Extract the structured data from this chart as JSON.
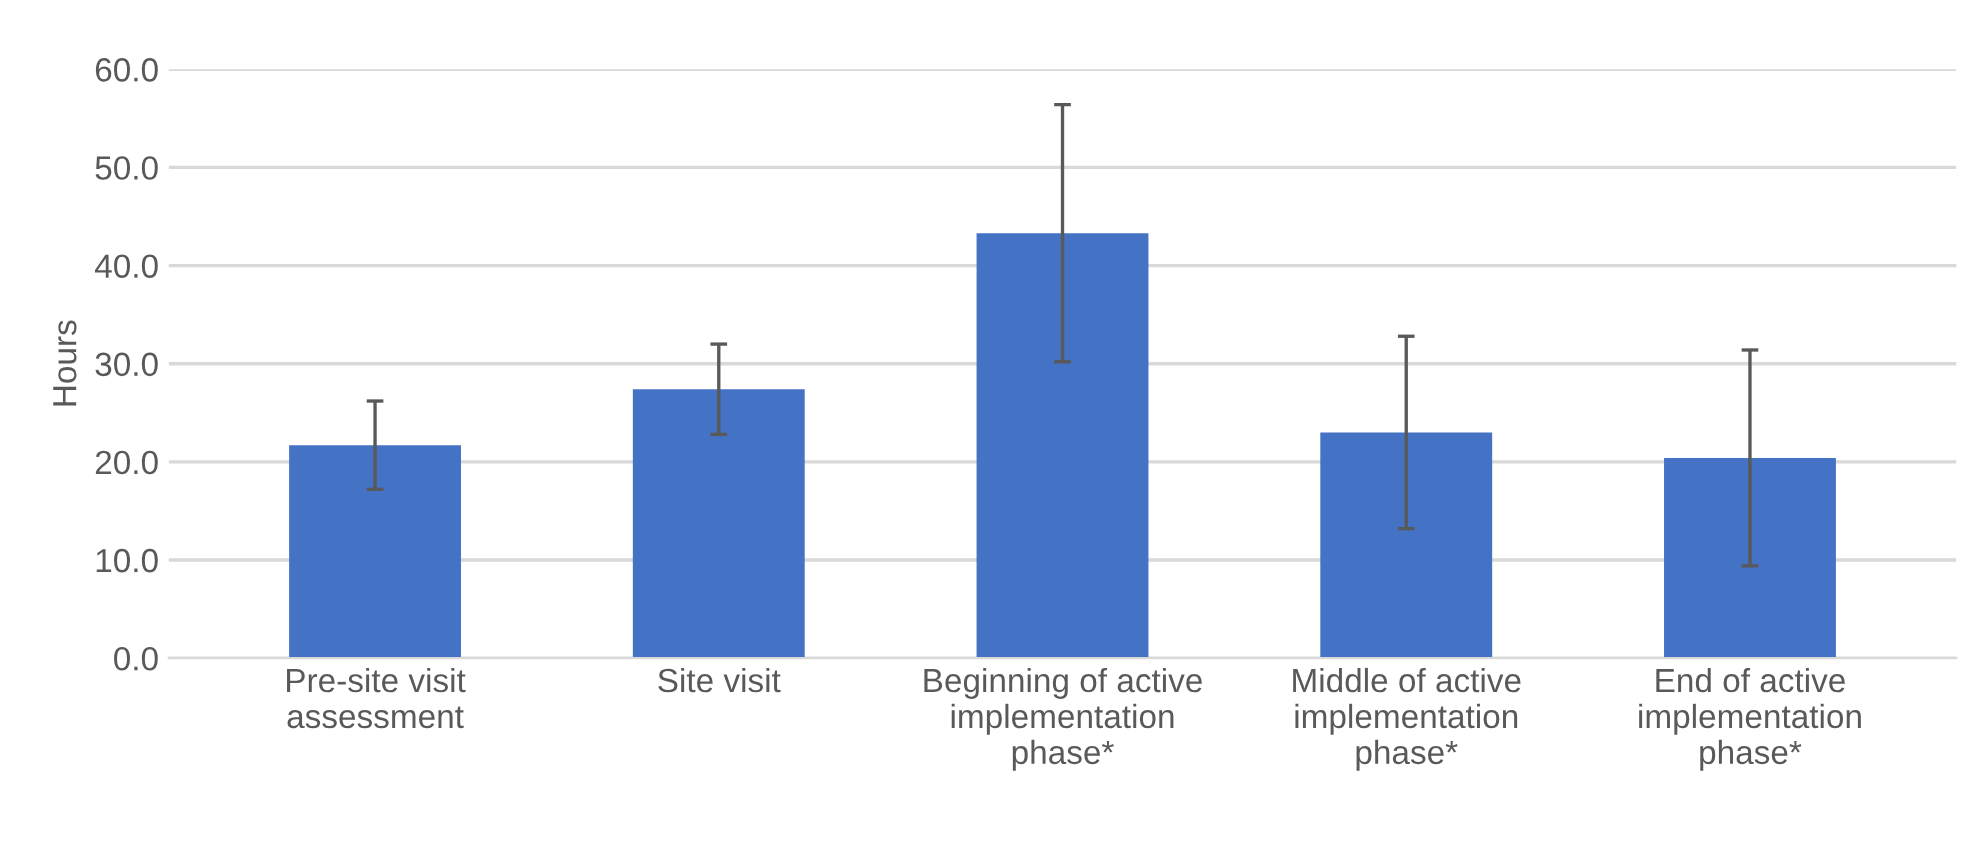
{
  "chart_data": {
    "type": "bar",
    "ylabel": "Hours",
    "categories": [
      "Pre-site visit\nassessment",
      "Site visit",
      "Beginning of active\nimplementation\nphase*",
      "Middle of active\nimplementation\nphase*",
      "End of active\nimplementation\nphase*"
    ],
    "values": [
      21.7,
      27.4,
      43.3,
      23.0,
      20.4
    ],
    "errors": [
      4.5,
      4.6,
      13.1,
      9.8,
      11.0
    ],
    "color": "#4472c4",
    "ylim": [
      0,
      60
    ],
    "yticks": [
      {
        "value": 0,
        "label": "0.0"
      },
      {
        "value": 10,
        "label": "10.0"
      },
      {
        "value": 20,
        "label": "20.0"
      },
      {
        "value": 30,
        "label": "30.0"
      },
      {
        "value": 40,
        "label": "40.0"
      },
      {
        "value": 50,
        "label": "50.0"
      },
      {
        "value": 60,
        "label": "60.0"
      }
    ],
    "grid": "y"
  }
}
